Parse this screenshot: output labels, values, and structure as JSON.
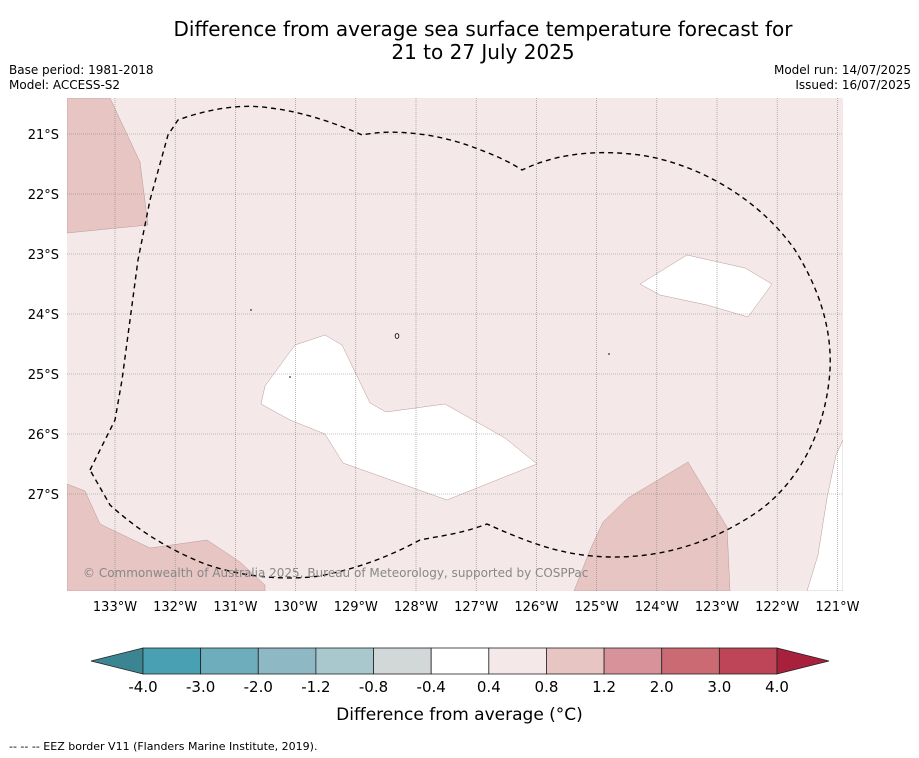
{
  "header": {
    "title_line1": "Difference from average sea surface temperature forecast for",
    "title_line2": "21 to 27 July 2025",
    "base_period": "Base period: 1981-2018",
    "model": "Model: ACCESS-S2",
    "model_run": "Model run: 14/07/2025",
    "issued": "Issued: 16/07/2025"
  },
  "map": {
    "lat_labels": [
      "21°S",
      "22°S",
      "23°S",
      "24°S",
      "25°S",
      "26°S",
      "27°S"
    ],
    "lon_labels": [
      "133°W",
      "132°W",
      "131°W",
      "130°W",
      "129°W",
      "128°W",
      "127°W",
      "126°W",
      "125°W",
      "124°W",
      "123°W",
      "122°W",
      "121°W"
    ],
    "copyright": "© Commonwealth of Australia 2025, Bureau of Meteorology, supported by COSPPac",
    "colors": {
      "band_0_4_to_0_8": "#f4e8e8",
      "band_0_8_to_1_2": "#e6c5c2",
      "band_neg0_4_to_0_4": "#ffffff"
    }
  },
  "colorbar": {
    "labels": [
      "-4.0",
      "-3.0",
      "-2.0",
      "-1.2",
      "-0.8",
      "-0.4",
      "0.4",
      "0.8",
      "1.2",
      "2.0",
      "3.0",
      "4.0"
    ],
    "colors": [
      "#4aa0b3",
      "#6eadbc",
      "#8db8c4",
      "#a9c8cd",
      "#d2d7d8",
      "#ffffff",
      "#f4e8e8",
      "#e6c5c2",
      "#d8939a",
      "#cc6a73",
      "#bd4557"
    ],
    "under_color": "#3b8593",
    "over_color": "#a8203b",
    "title": "Difference from average (°C)"
  },
  "footer": {
    "legend_text": "--  --  -- EEZ border V11 (Flanders Marine Institute, 2019)."
  }
}
